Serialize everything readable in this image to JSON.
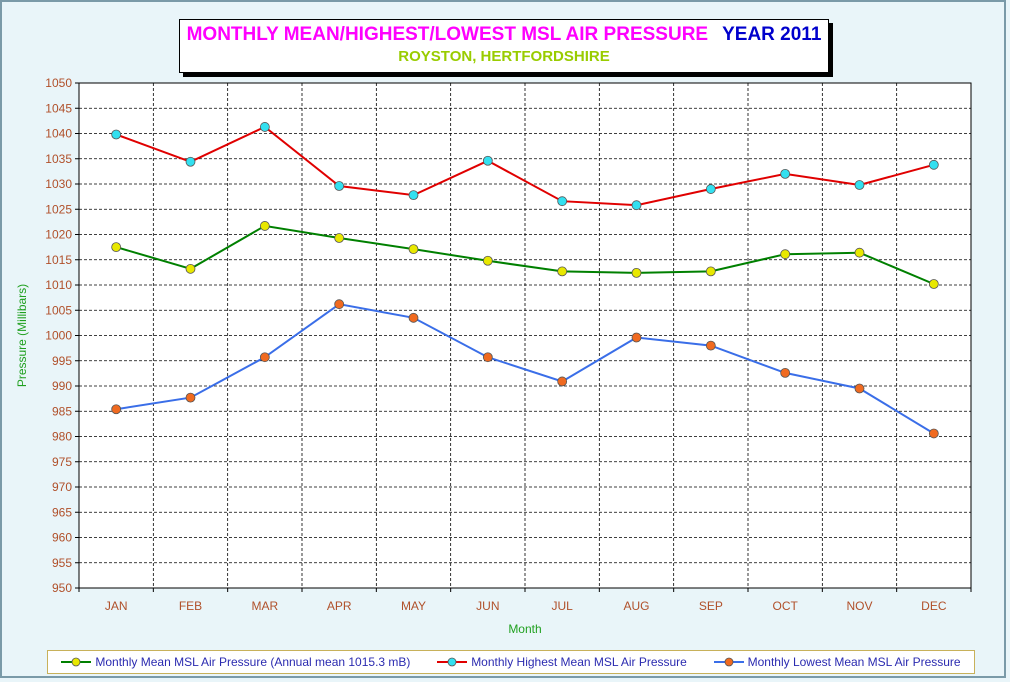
{
  "chart_data": {
    "type": "line",
    "title": "MONTHLY MEAN/HIGHEST/LOWEST MSL AIR PRESSURE",
    "title_year": "YEAR 2011",
    "subtitle": "ROYSTON, HERTFORDSHIRE",
    "xlabel": "Month",
    "ylabel": "Pressure (Millibars)",
    "ylim": [
      950,
      1050
    ],
    "ytick_step": 5,
    "grid": true,
    "legend_placement": "bottom",
    "categories": [
      "JAN",
      "FEB",
      "MAR",
      "APR",
      "MAY",
      "JUN",
      "JUL",
      "AUG",
      "SEP",
      "OCT",
      "NOV",
      "DEC"
    ],
    "series": [
      {
        "name": "Monthly Mean MSL Air Pressure (Annual mean 1015.3 mB)",
        "line_color": "#008000",
        "marker_color": "#e8e800",
        "values": [
          1017.5,
          1013.2,
          1021.7,
          1019.3,
          1017.1,
          1014.8,
          1012.7,
          1012.4,
          1012.7,
          1016.1,
          1016.4,
          1010.2
        ]
      },
      {
        "name": "Monthly Highest Mean MSL Air Pressure",
        "line_color": "#e00000",
        "marker_color": "#33e0f0",
        "values": [
          1039.8,
          1034.4,
          1041.3,
          1029.6,
          1027.8,
          1034.6,
          1026.6,
          1025.8,
          1029.0,
          1032.0,
          1029.8,
          1033.8
        ]
      },
      {
        "name": "Monthly Lowest Mean MSL Air Pressure",
        "line_color": "#3a6ee8",
        "marker_color": "#f06a20",
        "values": [
          985.4,
          987.7,
          995.7,
          1006.2,
          1003.5,
          995.7,
          990.9,
          999.6,
          998.0,
          992.6,
          989.5,
          980.6
        ]
      }
    ]
  },
  "colors": {
    "background": "#e9f5f9",
    "tick_label": "#b0502a",
    "axis_title": "#20a020",
    "legend_text": "#2b2bb0"
  }
}
